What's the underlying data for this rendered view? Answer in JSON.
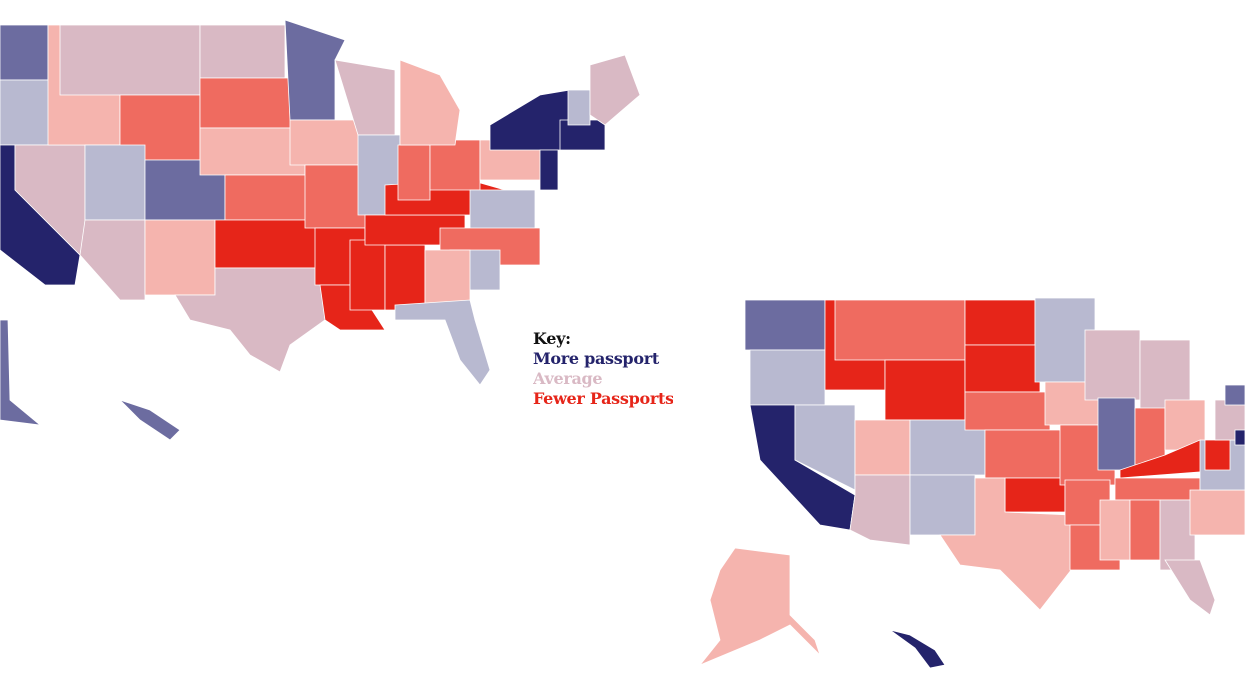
{
  "legend": {
    "title": "Key:",
    "items": [
      "More passport",
      "Average",
      "Fewer Passports"
    ]
  }
}
